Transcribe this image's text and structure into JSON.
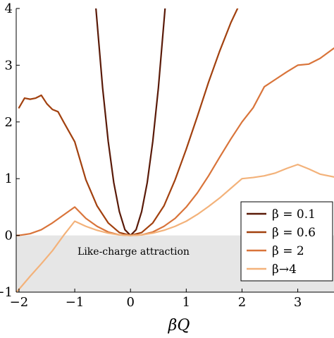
{
  "chart_data": {
    "type": "line",
    "xlabel": "βQ",
    "ylabel": "",
    "xlim": [
      -2.05,
      3.65
    ],
    "ylim": [
      -1,
      4
    ],
    "x_ticks": [
      -2,
      -1,
      0,
      1,
      2,
      3
    ],
    "x_tick_labels": [
      "−2",
      "−1",
      "0",
      "1",
      "2",
      "3"
    ],
    "y_ticks": [
      -1,
      0,
      1,
      2,
      3,
      4
    ],
    "y_tick_labels": [
      "−1",
      "0",
      "1",
      "2",
      "3",
      "4"
    ],
    "grid": false,
    "legend_position": "bottom-right",
    "shaded_region": {
      "label": "Like-charge attraction",
      "y_range": [
        -1,
        0
      ],
      "color": "#e6e6e6"
    },
    "series": [
      {
        "name": "β = 0.1",
        "color": "#5a1a08",
        "x": [
          -0.62,
          -0.5,
          -0.4,
          -0.3,
          -0.2,
          -0.1,
          0,
          0.1,
          0.2,
          0.3,
          0.4,
          0.5,
          0.62
        ],
        "y": [
          4.0,
          2.6,
          1.66,
          0.93,
          0.42,
          0.1,
          0,
          0.1,
          0.42,
          0.93,
          1.66,
          2.6,
          4.0
        ]
      },
      {
        "name": "β = 0.6",
        "color": "#a2410f",
        "x": [
          -2.0,
          -1.9,
          -1.8,
          -1.7,
          -1.6,
          -1.5,
          -1.4,
          -1.3,
          -1.2,
          -1.0,
          -0.8,
          -0.6,
          -0.4,
          -0.2,
          0,
          0.2,
          0.4,
          0.6,
          0.8,
          1.0,
          1.2,
          1.4,
          1.6,
          1.8,
          1.92
        ],
        "y": [
          2.25,
          2.42,
          2.4,
          2.42,
          2.47,
          2.32,
          2.22,
          2.18,
          2.0,
          1.65,
          0.98,
          0.52,
          0.22,
          0.05,
          0,
          0.05,
          0.22,
          0.52,
          0.98,
          1.52,
          2.1,
          2.7,
          3.25,
          3.75,
          4.0
        ]
      },
      {
        "name": "β = 2",
        "color": "#d9743a",
        "x": [
          -2.05,
          -2.0,
          -1.8,
          -1.6,
          -1.4,
          -1.2,
          -1.0,
          -0.8,
          -0.6,
          -0.4,
          -0.2,
          0,
          0.2,
          0.4,
          0.6,
          0.8,
          1.0,
          1.2,
          1.4,
          1.6,
          1.8,
          2.0,
          2.2,
          2.4,
          2.6,
          2.8,
          3.0,
          3.2,
          3.4,
          3.65
        ],
        "y": [
          0,
          0.0,
          0.03,
          0.1,
          0.22,
          0.36,
          0.5,
          0.3,
          0.16,
          0.06,
          0.01,
          0,
          0.01,
          0.06,
          0.16,
          0.3,
          0.5,
          0.75,
          1.05,
          1.38,
          1.7,
          2.0,
          2.25,
          2.62,
          2.75,
          2.88,
          3.0,
          3.02,
          3.12,
          3.3
        ]
      },
      {
        "name": "β→4",
        "color": "#f3b27a",
        "x": [
          -2.05,
          -2.0,
          -1.8,
          -1.6,
          -1.4,
          -1.2,
          -1.0,
          -0.8,
          -0.6,
          -0.4,
          -0.2,
          0,
          0.2,
          0.4,
          0.6,
          0.8,
          1.0,
          1.2,
          1.4,
          1.6,
          1.8,
          2.0,
          2.2,
          2.4,
          2.6,
          2.8,
          3.0,
          3.2,
          3.4,
          3.65
        ],
        "y": [
          -1.0,
          -0.95,
          -0.72,
          -0.5,
          -0.27,
          0.0,
          0.25,
          0.16,
          0.09,
          0.04,
          0.01,
          0,
          0.01,
          0.04,
          0.09,
          0.16,
          0.25,
          0.37,
          0.51,
          0.66,
          0.83,
          1.0,
          1.02,
          1.05,
          1.1,
          1.18,
          1.25,
          1.17,
          1.08,
          1.03
        ]
      }
    ]
  }
}
